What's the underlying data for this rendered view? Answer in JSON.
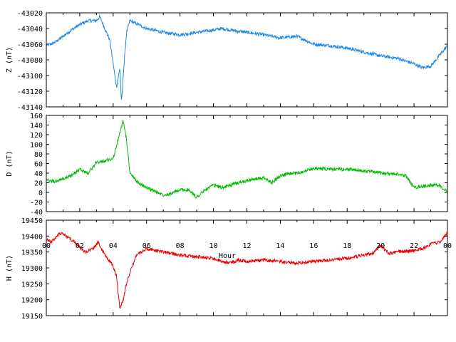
{
  "chart_data": [
    {
      "type": "line",
      "ylabel": "Z (nT)",
      "ylim": [
        -43140,
        -43020
      ],
      "yticks": [
        -43020,
        -43040,
        -43060,
        -43080,
        -43100,
        -43120,
        -43140
      ],
      "color": "#1e88e5",
      "x": [
        0,
        0.5,
        1,
        1.5,
        2,
        2.5,
        3,
        3.2,
        3.5,
        3.8,
        4,
        4.2,
        4.4,
        4.5,
        4.6,
        4.8,
        5,
        5.5,
        6,
        7,
        8,
        9,
        10,
        10.5,
        11,
        12,
        13,
        13.5,
        14,
        15,
        16,
        17,
        18,
        19,
        20,
        21,
        22,
        22.5,
        23,
        23.5,
        24
      ],
      "values": [
        -43062,
        -43058,
        -43050,
        -43042,
        -43035,
        -43030,
        -43030,
        -43025,
        -43040,
        -43055,
        -43085,
        -43115,
        -43090,
        -43135,
        -43100,
        -43045,
        -43030,
        -43035,
        -43040,
        -43045,
        -43048,
        -43045,
        -43042,
        -43040,
        -43042,
        -43045,
        -43048,
        -43050,
        -43052,
        -43050,
        -43060,
        -43062,
        -43065,
        -43070,
        -43075,
        -43078,
        -43085,
        -43090,
        -43088,
        -43075,
        -43062
      ]
    },
    {
      "type": "line",
      "ylabel": "D (nT)",
      "ylim": [
        -40,
        160
      ],
      "yticks": [
        160,
        140,
        120,
        100,
        80,
        60,
        40,
        20,
        0,
        -20,
        -40
      ],
      "color": "#00bb00",
      "x": [
        0,
        0.5,
        1,
        1.5,
        2,
        2.5,
        3,
        3.5,
        4,
        4.3,
        4.6,
        4.8,
        5,
        5.5,
        6,
        6.5,
        7,
        7.5,
        8,
        8.5,
        9,
        9.5,
        10,
        10.5,
        11,
        12,
        13,
        13.5,
        14,
        14.5,
        15,
        15.5,
        16,
        17,
        18,
        19,
        20,
        21,
        21.5,
        22,
        23,
        23.5,
        24
      ],
      "values": [
        25,
        22,
        28,
        35,
        48,
        40,
        62,
        66,
        70,
        110,
        150,
        110,
        40,
        20,
        10,
        2,
        -5,
        -2,
        5,
        5,
        -10,
        5,
        15,
        10,
        15,
        25,
        30,
        20,
        35,
        38,
        40,
        45,
        50,
        48,
        48,
        45,
        40,
        38,
        35,
        10,
        15,
        15,
        0
      ]
    },
    {
      "type": "line",
      "ylabel": "H (nT)",
      "ylim": [
        19150,
        19450
      ],
      "yticks": [
        19450,
        19400,
        19350,
        19300,
        19250,
        19200,
        19150
      ],
      "color": "#ee0000",
      "xlabel": "Hour",
      "xlim": [
        0,
        24
      ],
      "xticks": [
        "00",
        "02",
        "04",
        "06",
        "08",
        "10",
        "12",
        "14",
        "16",
        "18",
        "20",
        "22",
        "00"
      ],
      "x": [
        0,
        0.3,
        0.8,
        1.2,
        1.8,
        2.3,
        2.8,
        3.1,
        3.5,
        3.9,
        4.2,
        4.4,
        4.6,
        4.8,
        5.1,
        5.4,
        6,
        6.5,
        7,
        7.5,
        8,
        9,
        10,
        10.5,
        11,
        11.5,
        12,
        13,
        14,
        15,
        16,
        17,
        18,
        19,
        19.5,
        20,
        20.5,
        21,
        22,
        22.5,
        23,
        23.5,
        24
      ],
      "values": [
        19390,
        19380,
        19410,
        19400,
        19375,
        19350,
        19360,
        19380,
        19340,
        19315,
        19275,
        19170,
        19200,
        19250,
        19300,
        19340,
        19360,
        19355,
        19350,
        19345,
        19340,
        19335,
        19330,
        19320,
        19315,
        19325,
        19320,
        19325,
        19320,
        19315,
        19320,
        19325,
        19330,
        19340,
        19345,
        19370,
        19345,
        19350,
        19355,
        19360,
        19375,
        19380,
        19410
      ]
    }
  ]
}
